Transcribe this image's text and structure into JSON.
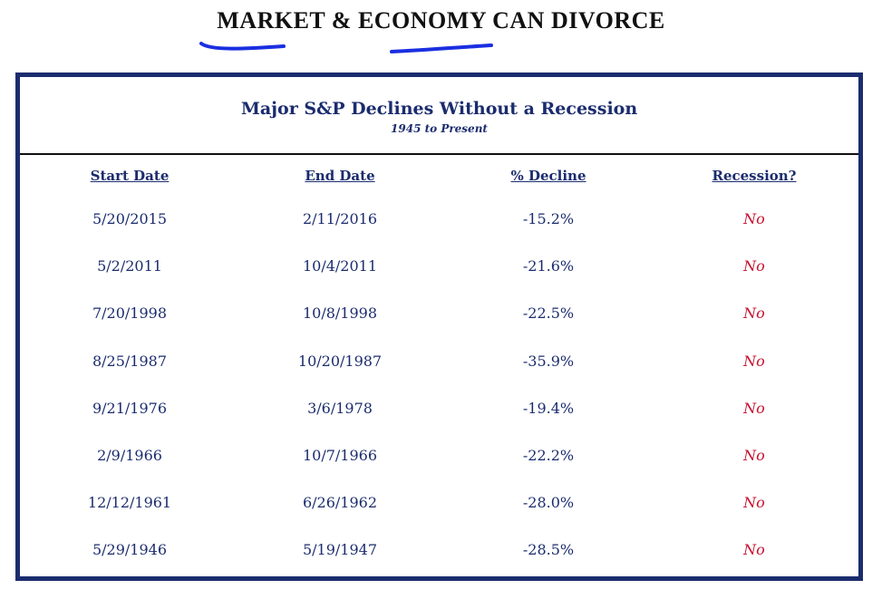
{
  "page_title": "MARKET & ECONOMY CAN DIVORCE",
  "table": {
    "title": "Major S&P Declines Without a Recession",
    "subtitle": "1945 to Present",
    "columns": [
      "Start Date",
      "End Date",
      "% Decline",
      "Recession?"
    ],
    "rows": [
      {
        "start": "5/20/2015",
        "end": "2/11/2016",
        "decline": "-15.2%",
        "recession": "No"
      },
      {
        "start": "5/2/2011",
        "end": "10/4/2011",
        "decline": "-21.6%",
        "recession": "No"
      },
      {
        "start": "7/20/1998",
        "end": "10/8/1998",
        "decline": "-22.5%",
        "recession": "No"
      },
      {
        "start": "8/25/1987",
        "end": "10/20/1987",
        "decline": "-35.9%",
        "recession": "No"
      },
      {
        "start": "9/21/1976",
        "end": "3/6/1978",
        "decline": "-19.4%",
        "recession": "No"
      },
      {
        "start": "2/9/1966",
        "end": "10/7/1966",
        "decline": "-22.2%",
        "recession": "No"
      },
      {
        "start": "12/12/1961",
        "end": "6/26/1962",
        "decline": "-28.0%",
        "recession": "No"
      },
      {
        "start": "5/29/1946",
        "end": "5/19/1947",
        "decline": "-28.5%",
        "recession": "No"
      }
    ]
  },
  "colors": {
    "navy": "#1b2c6e",
    "red": "#c8102e",
    "annotation_blue": "#1a2fe0"
  }
}
